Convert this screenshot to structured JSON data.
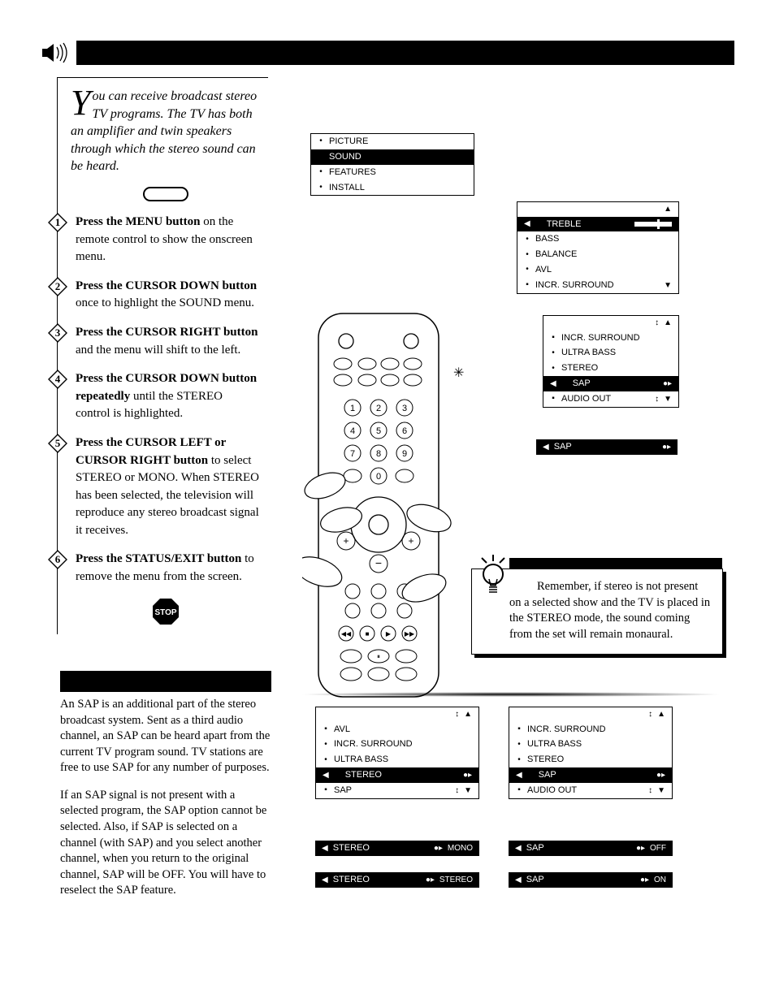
{
  "intro": "ou can receive broadcast stereo TV programs.  The TV has both an amplifier and twin speakers through which the stereo sound can be heard.",
  "dropcap": "Y",
  "steps": [
    {
      "n": "1",
      "bold": "Press the MENU button",
      "rest": " on the remote control to show the onscreen menu."
    },
    {
      "n": "2",
      "bold": "Press the CURSOR DOWN button",
      "rest": " once to highlight the SOUND menu."
    },
    {
      "n": "3",
      "bold": "Press the CURSOR RIGHT button",
      "rest": " and the menu will shift to the left."
    },
    {
      "n": "4",
      "bold": "Press the CURSOR DOWN button repeatedly",
      "rest": " until the STEREO control is highlighted."
    },
    {
      "n": "5",
      "bold": "Press the CURSOR LEFT or CURSOR RIGHT button",
      "rest": " to select STEREO or MONO.  When STEREO has been selected, the television will reproduce any stereo broadcast signal it receives."
    },
    {
      "n": "6",
      "bold": "Press the STATUS/EXIT button",
      "rest": " to remove the menu from the screen."
    }
  ],
  "stop_label": "STOP",
  "sap_p1": "An SAP is an additional part of the stereo broadcast system.  Sent as a third audio channel, an SAP can be heard apart from the current TV program sound.  TV stations are free to use SAP for any number of purposes.",
  "sap_p2": "If an SAP signal is not present with a selected program, the SAP option cannot be selected.  Also, if SAP is selected on a channel (with SAP) and you select another channel, when you return to the original channel, SAP will be OFF.  You will have to reselect the SAP feature.",
  "hint": "Remember, if stereo is not present on a selected show and the TV is placed in the STEREO mode, the sound coming from the set will remain monaural.",
  "menu1": {
    "rows": [
      {
        "bullet": "•",
        "label": "PICTURE",
        "sub": ""
      },
      {
        "bullet": "",
        "label": "SOUND",
        "sub": "",
        "tri": "▶",
        "sel": true
      },
      {
        "bullet": "•",
        "label": "FEATURES",
        "sub": ""
      },
      {
        "bullet": "•",
        "label": "INSTALL",
        "sub": ""
      }
    ]
  },
  "menu2": {
    "rows": [
      {
        "bullet": "",
        "label": "",
        "arrows": "▲"
      },
      {
        "bullet": "",
        "label": "TREBLE",
        "sel": true,
        "left": "◀",
        "bar": true
      },
      {
        "bullet": "•",
        "label": "BASS"
      },
      {
        "bullet": "•",
        "label": "BALANCE"
      },
      {
        "bullet": "•",
        "label": "AVL"
      },
      {
        "bullet": "▪",
        "label": "INCR. SURROUND",
        "arrows": "▼"
      }
    ]
  },
  "menu3": {
    "rows": [
      {
        "bullet": "",
        "arrows": "▲",
        "right": "↕"
      },
      {
        "bullet": "▪",
        "label": "INCR. SURROUND"
      },
      {
        "bullet": "•",
        "label": "ULTRA BASS"
      },
      {
        "bullet": "•",
        "label": "STEREO"
      },
      {
        "bullet": "",
        "label": "SAP",
        "sel": true,
        "left": "◀",
        "mid": "●▸",
        "right": ""
      },
      {
        "bullet": "▪",
        "label": "AUDIO OUT",
        "arrows": "▼",
        "right": "↕"
      }
    ]
  },
  "menu4": {
    "rows": [
      {
        "label": "SAP",
        "left": "◀",
        "mid": "●▸",
        "sel": true
      }
    ]
  },
  "menu5": {
    "rows": [
      {
        "bullet": "",
        "arrows": "▲",
        "right": "↕"
      },
      {
        "bullet": "▪",
        "label": "AVL"
      },
      {
        "bullet": "•",
        "label": "INCR. SURROUND"
      },
      {
        "bullet": "•",
        "label": "ULTRA BASS"
      },
      {
        "bullet": "",
        "label": "STEREO",
        "sel": true,
        "left": "◀",
        "mid": "●▸"
      },
      {
        "bullet": "▪",
        "label": "SAP",
        "arrows": "▼",
        "right": "↕"
      }
    ]
  },
  "menu6": {
    "rows": [
      {
        "label": "STEREO",
        "right": "MONO",
        "sel": true,
        "left": "◀",
        "mid": "●▸"
      },
      {
        "label": "STEREO",
        "right": "STEREO",
        "sel": true,
        "left": "◀",
        "mid": "●▸"
      }
    ],
    "gap": true
  },
  "menu7": {
    "rows": [
      {
        "bullet": "",
        "arrows": "▲",
        "right": "↕"
      },
      {
        "bullet": "▪",
        "label": "INCR. SURROUND"
      },
      {
        "bullet": "•",
        "label": "ULTRA BASS"
      },
      {
        "bullet": "•",
        "label": "STEREO"
      },
      {
        "bullet": "",
        "label": "SAP",
        "sel": true,
        "left": "◀",
        "mid": "●▸"
      },
      {
        "bullet": "▪",
        "label": "AUDIO OUT",
        "arrows": "▼",
        "right": "↕"
      }
    ]
  },
  "menu8": {
    "rows": [
      {
        "label": "SAP",
        "right": "OFF",
        "sel": true,
        "left": "◀",
        "mid": "●▸"
      },
      {
        "label": "SAP",
        "right": "ON",
        "sel": true,
        "left": "◀",
        "mid": "●▸"
      }
    ],
    "gap": true
  },
  "colors": {
    "black": "#000",
    "white": "#fff"
  }
}
